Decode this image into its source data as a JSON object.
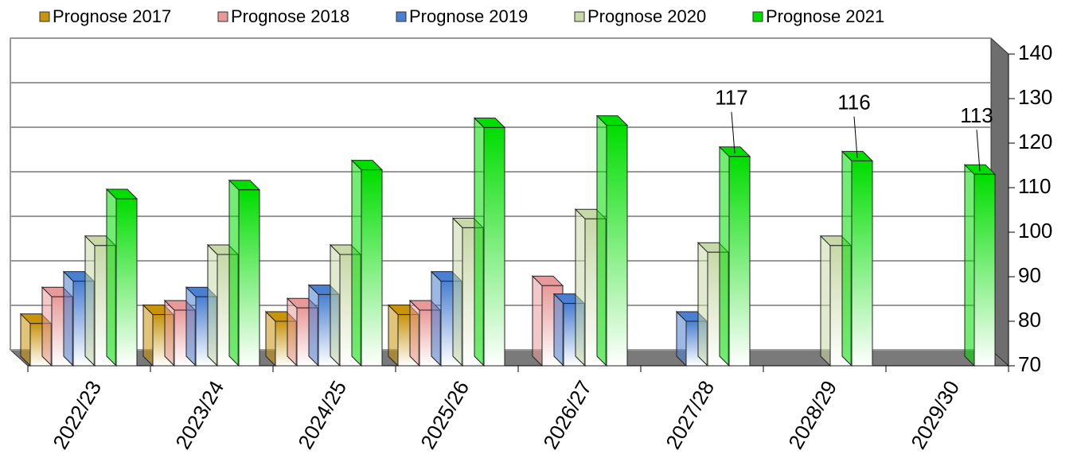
{
  "chart_data": {
    "type": "bar",
    "categories": [
      "2022/23",
      "2023/24",
      "2024/25",
      "2025/26",
      "2026/27",
      "2027/28",
      "2028/29",
      "2029/30"
    ],
    "series": [
      {
        "name": "Prognose 2017",
        "color": "#c8940c",
        "values": [
          79.5,
          81.5,
          80,
          81.5,
          null,
          null,
          null,
          null
        ]
      },
      {
        "name": "Prognose 2018",
        "color": "#e89a9a",
        "values": [
          85.5,
          82.5,
          83,
          82.5,
          88,
          null,
          null,
          null
        ]
      },
      {
        "name": "Prognose 2019",
        "color": "#4a7fd2",
        "values": [
          89,
          85.5,
          86,
          89,
          84,
          80,
          null,
          null
        ]
      },
      {
        "name": "Prognose 2020",
        "color": "#c8d8a8",
        "values": [
          97,
          95,
          95,
          101,
          103,
          95.5,
          97,
          null
        ]
      },
      {
        "name": "Prognose 2021",
        "color": "#00dd00",
        "values": [
          107.5,
          109.5,
          114,
          123.5,
          124,
          117,
          116,
          113
        ],
        "value_labels": [
          null,
          null,
          null,
          null,
          null,
          "117",
          "116",
          "113"
        ]
      }
    ],
    "ylim": [
      70,
      140
    ],
    "yticks": [
      70,
      80,
      90,
      100,
      110,
      120,
      130,
      140
    ],
    "grid": true,
    "legend": "top"
  }
}
